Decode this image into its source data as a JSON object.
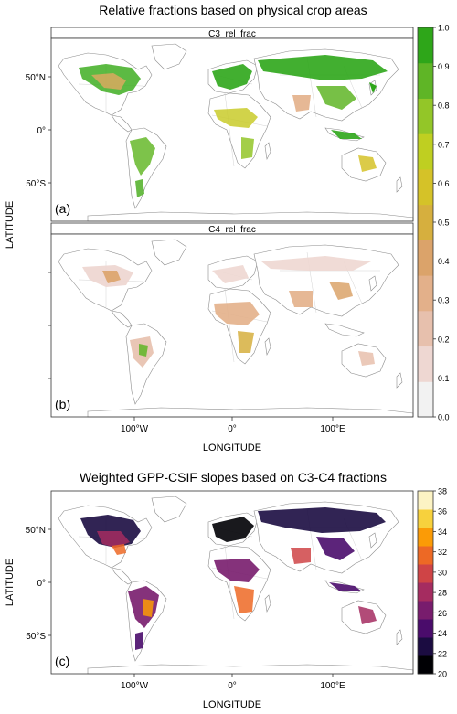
{
  "figure_top": {
    "title": "Relative fractions based on physical crop areas",
    "panels": [
      {
        "strip": "C3_rel_frac",
        "label": "(a)"
      },
      {
        "strip": "C4_rel_frac",
        "label": "(b)"
      }
    ],
    "ylabel": "LATITUDE",
    "xlabel": "LONGITUDE",
    "lat_ticks": [
      "50°N",
      "0°",
      "50°S"
    ],
    "lon_ticks": [
      "100°W",
      "0°",
      "100°E"
    ],
    "colorbar": {
      "ticks": [
        "0.0",
        "0.1",
        "0.2",
        "0.3",
        "0.4",
        "0.5",
        "0.6",
        "0.7",
        "0.8",
        "0.9",
        "1.0"
      ],
      "min": 0.0,
      "max": 1.0,
      "colors": [
        "#f2f2f2",
        "#eed7d2",
        "#e7c0ad",
        "#e3b08a",
        "#dba36a",
        "#d6af3e",
        "#d5c228",
        "#bfcf21",
        "#93c628",
        "#5fb526",
        "#2ea619"
      ]
    }
  },
  "figure_bottom": {
    "title": "Weighted GPP-CSIF slopes based on C3-C4 fractions",
    "panel_label": "(c)",
    "ylabel": "LATITUDE",
    "xlabel": "LONGITUDE",
    "lat_ticks": [
      "50°N",
      "0°",
      "50°S"
    ],
    "lon_ticks": [
      "100°W",
      "0°",
      "100°E"
    ],
    "colorbar": {
      "ticks": [
        "20",
        "22",
        "24",
        "26",
        "28",
        "30",
        "32",
        "34",
        "36",
        "38"
      ],
      "min": 20,
      "max": 38,
      "colors": [
        "#000004",
        "#1b0c41",
        "#4a0c6b",
        "#781c6d",
        "#a52c60",
        "#cf4446",
        "#ed6925",
        "#fb9b06",
        "#f7d13d",
        "#fcf3c4"
      ]
    }
  }
}
